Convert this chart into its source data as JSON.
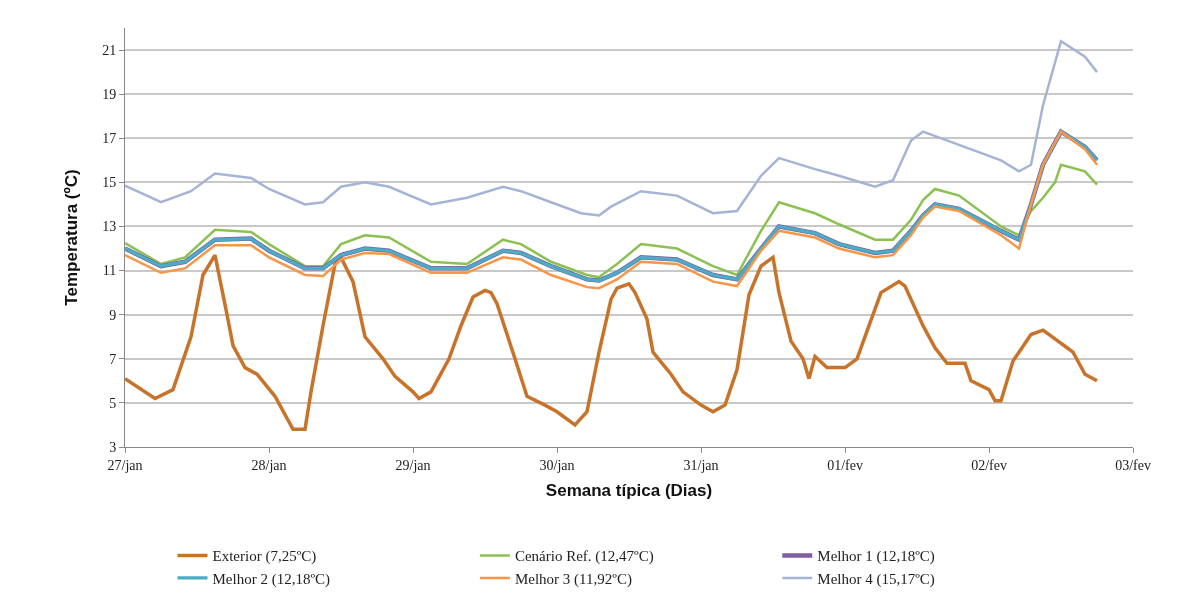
{
  "chart_data": {
    "type": "line",
    "xlabel": "Semana típica (Dias)",
    "ylabel": "Temperatura (ºC)",
    "xlim": [
      "--01-27",
      "--02-03"
    ],
    "xticks": [
      {
        "value": "--01-27",
        "label": "27/jan"
      },
      {
        "value": "--01-28",
        "label": "28/jan"
      },
      {
        "value": "--01-29",
        "label": "29/jan"
      },
      {
        "value": "--01-30",
        "label": "30/jan"
      },
      {
        "value": "--01-31",
        "label": "31/jan"
      },
      {
        "value": "--02-01",
        "label": "01/fev"
      },
      {
        "value": "--02-02",
        "label": "02/fev"
      },
      {
        "value": "--02-03",
        "label": "03/fev"
      }
    ],
    "ylim": [
      3,
      22
    ],
    "yticks": [
      3,
      5,
      7,
      9,
      11,
      13,
      15,
      17,
      19,
      21
    ],
    "grid": "y",
    "legend": "bottom",
    "marker": "none",
    "line_style": "solid",
    "series": [
      {
        "name": "Exterior (7,25ºC)",
        "color": "#c8732a",
        "x": [
          "--01-27T00:00",
          "--01-27T05:00",
          "--01-27T08:00",
          "--01-27T11:00",
          "--01-27T13:00",
          "--01-27T15:00",
          "--01-27T17:00",
          "--01-27T18:00",
          "--01-27T20:00",
          "--01-27T22:00",
          "--01-28T01:00",
          "--01-28T04:00",
          "--01-28T06:00",
          "--01-28T07:00",
          "--01-28T09:00",
          "--01-28T11:00",
          "--01-28T12:00",
          "--01-28T14:00",
          "--01-28T16:00",
          "--01-28T19:00",
          "--01-28T21:00",
          "--01-29T00:00",
          "--01-29T01:00",
          "--01-29T03:00",
          "--01-29T06:00",
          "--01-29T08:00",
          "--01-29T10:00",
          "--01-29T12:00",
          "--01-29T13:00",
          "--01-29T14:00",
          "--01-29T17:00",
          "--01-29T19:00",
          "--01-29T22:00",
          "--01-30T00:00",
          "--01-30T03:00",
          "--01-30T05:00",
          "--01-30T07:00",
          "--01-30T09:00",
          "--01-30T10:00",
          "--01-30T12:00",
          "--01-30T13:00",
          "--01-30T15:00",
          "--01-30T16:00",
          "--01-30T19:00",
          "--01-30T21:00",
          "--01-31T00:00",
          "--01-31T02:00",
          "--01-31T04:00",
          "--01-31T06:00",
          "--01-31T08:00",
          "--01-31T10:00",
          "--01-31T12:00",
          "--01-31T13:00",
          "--01-31T15:00",
          "--01-31T17:00",
          "--01-31T18:00",
          "--01-31T19:00",
          "--01-31T21:00",
          "--02-01T00:00",
          "--02-01T02:00",
          "--02-01T04:00",
          "--02-01T06:00",
          "--02-01T09:00",
          "--02-01T10:00",
          "--02-01T13:00",
          "--02-01T15:00",
          "--02-01T17:00",
          "--02-01T20:00",
          "--02-01T21:00",
          "--02-02T00:00",
          "--02-02T01:00",
          "--02-02T02:00",
          "--02-02T04:00",
          "--02-02T07:00",
          "--02-02T09:00",
          "--02-02T11:00",
          "--02-02T13:00",
          "--02-02T14:00",
          "--02-02T16:00",
          "--02-02T18:00"
        ],
        "values": [
          6.1,
          5.2,
          5.6,
          8,
          10.8,
          11.7,
          9,
          7.6,
          6.6,
          6.3,
          5.3,
          3.8,
          3.8,
          5.5,
          8.5,
          11.3,
          11.6,
          10.5,
          8,
          7,
          6.2,
          5.5,
          5.2,
          5.5,
          7,
          8.5,
          9.8,
          10.1,
          10,
          9.5,
          7,
          5.3,
          4.9,
          4.6,
          4.0,
          4.6,
          7.3,
          9.7,
          10.2,
          10.4,
          10,
          8.8,
          7.3,
          6.3,
          5.5,
          4.9,
          4.6,
          4.9,
          6.5,
          9.9,
          11.2,
          11.6,
          10,
          7.8,
          7,
          6.1,
          7.1,
          6.6,
          6.6,
          7,
          8.5,
          10,
          10.5,
          10.3,
          8.5,
          7.5,
          6.8,
          6.8,
          6.0,
          5.6,
          5.1,
          5.1,
          6.9,
          8.1,
          8.3,
          7.9,
          7.5,
          7.3,
          6.3,
          6.0
        ]
      },
      {
        "name": "Cenário Ref. (12,47ºC)",
        "color": "#8cc152",
        "x": [
          "--01-27T00:00",
          "--01-27T06:00",
          "--01-27T10:00",
          "--01-27T15:00",
          "--01-27T21:00",
          "--01-28T00:00",
          "--01-28T06:00",
          "--01-28T09:00",
          "--01-28T12:00",
          "--01-28T16:00",
          "--01-28T20:00",
          "--01-29T03:00",
          "--01-29T09:00",
          "--01-29T15:00",
          "--01-29T18:00",
          "--01-29T23:00",
          "--01-30T05:00",
          "--01-30T07:00",
          "--01-30T10:00",
          "--01-30T14:00",
          "--01-30T20:00",
          "--01-31T02:00",
          "--01-31T06:00",
          "--01-31T10:00",
          "--01-31T13:00",
          "--01-31T19:00",
          "--01-31T23:00",
          "--02-01T05:00",
          "--02-01T08:00",
          "--02-01T11:00",
          "--02-01T13:00",
          "--02-01T15:00",
          "--02-01T19:00",
          "--02-02T02:00",
          "--02-02T05:00",
          "--02-02T07:00",
          "--02-02T09:00",
          "--02-02T11:00",
          "--02-02T12:00",
          "--02-02T16:00",
          "--02-02T18:00"
        ],
        "values": [
          12.25,
          11.3,
          11.6,
          12.85,
          12.75,
          12.2,
          11.2,
          11.2,
          12.2,
          12.6,
          12.5,
          11.4,
          11.3,
          12.4,
          12.2,
          11.4,
          10.8,
          10.7,
          11.3,
          12.2,
          12.0,
          11.2,
          10.8,
          12.8,
          14.1,
          13.6,
          13.1,
          12.4,
          12.4,
          13.3,
          14.2,
          14.7,
          14.4,
          13.0,
          12.6,
          13.7,
          14.3,
          15.0,
          15.8,
          15.5,
          14.9
        ]
      },
      {
        "name": "Melhor 1 (12,18ºC)",
        "color": "#7e5fa0",
        "x": [
          "--01-27T00:00",
          "--01-27T06:00",
          "--01-27T10:00",
          "--01-27T15:00",
          "--01-27T21:00",
          "--01-28T00:00",
          "--01-28T06:00",
          "--01-28T09:00",
          "--01-28T12:00",
          "--01-28T16:00",
          "--01-28T20:00",
          "--01-29T03:00",
          "--01-29T09:00",
          "--01-29T15:00",
          "--01-29T18:00",
          "--01-29T23:00",
          "--01-30T05:00",
          "--01-30T07:00",
          "--01-30T10:00",
          "--01-30T14:00",
          "--01-30T20:00",
          "--01-31T02:00",
          "--01-31T06:00",
          "--01-31T10:00",
          "--01-31T13:00",
          "--01-31T19:00",
          "--01-31T23:00",
          "--02-01T05:00",
          "--02-01T08:00",
          "--02-01T11:00",
          "--02-01T13:00",
          "--02-01T15:00",
          "--02-01T19:00",
          "--02-02T02:00",
          "--02-02T05:00",
          "--02-02T07:00",
          "--02-02T09:00",
          "--02-02T12:00",
          "--02-02T16:00",
          "--02-02T18:00"
        ],
        "values": [
          12.0,
          11.2,
          11.4,
          12.4,
          12.45,
          11.9,
          11.1,
          11.1,
          11.7,
          12.0,
          11.9,
          11.1,
          11.1,
          11.9,
          11.8,
          11.2,
          10.6,
          10.55,
          10.9,
          11.6,
          11.5,
          10.8,
          10.6,
          12.0,
          13.0,
          12.7,
          12.2,
          11.8,
          11.9,
          12.8,
          13.5,
          14.0,
          13.8,
          12.8,
          12.4,
          14.0,
          15.8,
          17.3,
          16.6,
          16.0
        ]
      },
      {
        "name": "Melhor 2 (12,18ºC)",
        "color": "#4bacc6",
        "x": [
          "--01-27T00:00",
          "--01-27T06:00",
          "--01-27T10:00",
          "--01-27T15:00",
          "--01-27T21:00",
          "--01-28T00:00",
          "--01-28T06:00",
          "--01-28T09:00",
          "--01-28T12:00",
          "--01-28T16:00",
          "--01-28T20:00",
          "--01-29T03:00",
          "--01-29T09:00",
          "--01-29T15:00",
          "--01-29T18:00",
          "--01-29T23:00",
          "--01-30T05:00",
          "--01-30T07:00",
          "--01-30T10:00",
          "--01-30T14:00",
          "--01-30T20:00",
          "--01-31T02:00",
          "--01-31T06:00",
          "--01-31T10:00",
          "--01-31T13:00",
          "--01-31T19:00",
          "--01-31T23:00",
          "--02-01T05:00",
          "--02-01T08:00",
          "--02-01T11:00",
          "--02-01T13:00",
          "--02-01T15:00",
          "--02-01T19:00",
          "--02-02T02:00",
          "--02-02T05:00",
          "--02-02T07:00",
          "--02-02T09:00",
          "--02-02T12:00",
          "--02-02T16:00",
          "--02-02T18:00"
        ],
        "values": [
          12.0,
          11.2,
          11.4,
          12.4,
          12.45,
          11.9,
          11.1,
          11.1,
          11.7,
          12.0,
          11.9,
          11.1,
          11.1,
          11.9,
          11.8,
          11.2,
          10.6,
          10.55,
          10.9,
          11.6,
          11.5,
          10.8,
          10.6,
          12.0,
          13.0,
          12.7,
          12.2,
          11.8,
          11.9,
          12.8,
          13.5,
          14.0,
          13.8,
          12.8,
          12.4,
          14.0,
          15.8,
          17.3,
          16.6,
          16.0
        ]
      },
      {
        "name": "Melhor 3 (11,92ºC)",
        "color": "#f79646",
        "x": [
          "--01-27T00:00",
          "--01-27T06:00",
          "--01-27T10:00",
          "--01-27T15:00",
          "--01-27T21:00",
          "--01-28T00:00",
          "--01-28T06:00",
          "--01-28T09:00",
          "--01-28T12:00",
          "--01-28T16:00",
          "--01-28T20:00",
          "--01-29T03:00",
          "--01-29T09:00",
          "--01-29T15:00",
          "--01-29T18:00",
          "--01-29T23:00",
          "--01-30T05:00",
          "--01-30T07:00",
          "--01-30T10:00",
          "--01-30T14:00",
          "--01-30T20:00",
          "--01-31T02:00",
          "--01-31T06:00",
          "--01-31T10:00",
          "--01-31T13:00",
          "--01-31T19:00",
          "--01-31T23:00",
          "--02-01T05:00",
          "--02-01T08:00",
          "--02-01T11:00",
          "--02-01T13:00",
          "--02-01T15:00",
          "--02-01T19:00",
          "--02-02T02:00",
          "--02-02T05:00",
          "--02-02T07:00",
          "--02-02T09:00",
          "--02-02T12:00",
          "--02-02T16:00",
          "--02-02T18:00"
        ],
        "values": [
          11.7,
          10.9,
          11.1,
          12.15,
          12.15,
          11.6,
          10.8,
          10.75,
          11.5,
          11.8,
          11.75,
          10.9,
          10.9,
          11.6,
          11.5,
          10.8,
          10.25,
          10.2,
          10.6,
          11.4,
          11.3,
          10.5,
          10.3,
          11.9,
          12.8,
          12.5,
          12.0,
          11.6,
          11.7,
          12.6,
          13.4,
          13.9,
          13.7,
          12.6,
          12.0,
          14.0,
          15.8,
          17.3,
          16.5,
          15.8
        ]
      },
      {
        "name": "Melhor 4 (15,17ºC)",
        "color": "#a5b4d4",
        "x": [
          "--01-27T00:00",
          "--01-27T06:00",
          "--01-27T11:00",
          "--01-27T15:00",
          "--01-27T21:00",
          "--01-28T00:00",
          "--01-28T06:00",
          "--01-28T09:00",
          "--01-28T12:00",
          "--01-28T16:00",
          "--01-28T20:00",
          "--01-29T03:00",
          "--01-29T09:00",
          "--01-29T15:00",
          "--01-29T18:00",
          "--01-29T23:00",
          "--01-30T04:00",
          "--01-30T07:00",
          "--01-30T09:00",
          "--01-30T14:00",
          "--01-30T20:00",
          "--01-31T02:00",
          "--01-31T06:00",
          "--01-31T10:00",
          "--01-31T13:00",
          "--01-31T19:00",
          "--01-31T23:00",
          "--02-01T05:00",
          "--02-01T08:00",
          "--02-01T11:00",
          "--02-01T13:00",
          "--02-01T19:00",
          "--02-02T02:00",
          "--02-02T05:00",
          "--02-02T07:00",
          "--02-02T09:00",
          "--02-02T12:00",
          "--02-02T16:00",
          "--02-02T18:00"
        ],
        "values": [
          14.85,
          14.1,
          14.6,
          15.4,
          15.2,
          14.7,
          14.0,
          14.1,
          14.8,
          15.0,
          14.8,
          14.0,
          14.3,
          14.8,
          14.6,
          14.1,
          13.6,
          13.5,
          13.9,
          14.6,
          14.4,
          13.6,
          13.7,
          15.3,
          16.1,
          15.6,
          15.3,
          14.8,
          15.1,
          16.9,
          17.3,
          16.7,
          16.0,
          15.5,
          15.8,
          18.5,
          21.4,
          20.7,
          20.0
        ]
      }
    ]
  }
}
